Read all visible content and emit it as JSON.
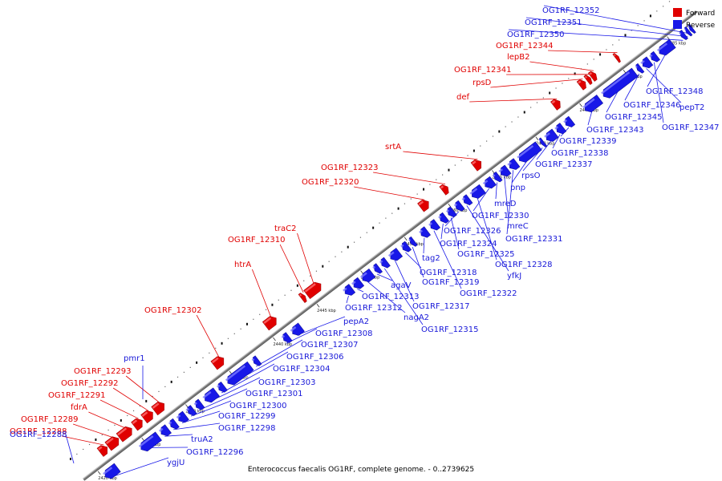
{
  "caption": "Enterococcus faecalis OG1RF, complete genome. - 0..2739625",
  "legend": [
    {
      "label": "Forward",
      "color": "#e00000"
    },
    {
      "label": "Reverse",
      "color": "#1818e8"
    }
  ],
  "colors": {
    "forward": "#e00000",
    "reverse": "#1818e8",
    "forward_label": "#e00000",
    "reverse_label": "#1818d8",
    "backbone": "#777777"
  },
  "axis": {
    "start_kbp": 2420,
    "end_kbp": 2485,
    "tick_step_kbp": 5,
    "tick_suffix": " kbp"
  },
  "forward_genes": [
    {
      "name": "OG1RF_12288",
      "start_kbp": 2421.2,
      "len_kbp": 0.8
    },
    {
      "name": "OG1RF_12289",
      "start_kbp": 2422.1,
      "len_kbp": 1.2
    },
    {
      "name": "fdrA",
      "start_kbp": 2423.4,
      "len_kbp": 1.4
    },
    {
      "name": "OG1RF_12291",
      "start_kbp": 2425.1,
      "len_kbp": 0.9
    },
    {
      "name": "OG1RF_12292",
      "start_kbp": 2426.2,
      "len_kbp": 1.0
    },
    {
      "name": "OG1RF_12293",
      "start_kbp": 2427.4,
      "len_kbp": 1.1
    },
    {
      "name": "OG1RF_12302",
      "start_kbp": 2434.2,
      "len_kbp": 1.1
    },
    {
      "name": "htrA",
      "start_kbp": 2440.1,
      "len_kbp": 1.2
    },
    {
      "name": "OG1RF_12310",
      "start_kbp": 2444.2,
      "len_kbp": 0.4
    },
    {
      "name": "traC2",
      "start_kbp": 2444.8,
      "len_kbp": 1.6
    },
    {
      "name": "OG1RF_12320",
      "start_kbp": 2457.8,
      "len_kbp": 0.9
    },
    {
      "name": "OG1RF_12323",
      "start_kbp": 2460.3,
      "len_kbp": 0.6
    },
    {
      "name": "srtA",
      "start_kbp": 2463.9,
      "len_kbp": 0.8
    },
    {
      "name": "def",
      "start_kbp": 2473.0,
      "len_kbp": 0.7
    },
    {
      "name": "rpsD",
      "start_kbp": 2476.0,
      "len_kbp": 0.6
    },
    {
      "name": "OG1RF_12341",
      "start_kbp": 2476.8,
      "len_kbp": 0.4
    },
    {
      "name": "lepB2",
      "start_kbp": 2477.3,
      "len_kbp": 0.5
    },
    {
      "name": "OG1RF_12344",
      "start_kbp": 2480.1,
      "len_kbp": 0.3
    }
  ],
  "reverse_genes": [
    {
      "name": "ygjU",
      "start_kbp": 2420.2,
      "len_kbp": 1.4
    },
    {
      "name": "OG1RF_12296",
      "start_kbp": 2424.3,
      "len_kbp": 2.0
    },
    {
      "name": "truA2",
      "start_kbp": 2426.6,
      "len_kbp": 0.8
    },
    {
      "name": "OG1RF_12298",
      "start_kbp": 2427.7,
      "len_kbp": 0.6
    },
    {
      "name": "OG1RF_12299",
      "start_kbp": 2428.6,
      "len_kbp": 0.8
    },
    {
      "name": "OG1RF_12300",
      "start_kbp": 2429.7,
      "len_kbp": 0.6
    },
    {
      "name": "OG1RF_12301",
      "start_kbp": 2430.6,
      "len_kbp": 0.6
    },
    {
      "name": "OG1RF_12303",
      "start_kbp": 2431.6,
      "len_kbp": 1.3
    },
    {
      "name": "OG1RF_12304",
      "start_kbp": 2433.2,
      "len_kbp": 0.6
    },
    {
      "name": "OG1RF_12306",
      "start_kbp": 2434.2,
      "len_kbp": 2.6
    },
    {
      "name": "OG1RF_12307",
      "start_kbp": 2437.2,
      "len_kbp": 0.5
    },
    {
      "name": "OG1RF_12308",
      "start_kbp": 2440.6,
      "len_kbp": 0.6
    },
    {
      "name": "pepA2",
      "start_kbp": 2441.6,
      "len_kbp": 1.0
    },
    {
      "name": "OG1RF_12312",
      "start_kbp": 2447.6,
      "len_kbp": 0.8
    },
    {
      "name": "OG1RF_12313",
      "start_kbp": 2448.6,
      "len_kbp": 0.8
    },
    {
      "name": "nagA2",
      "start_kbp": 2449.6,
      "len_kbp": 1.1
    },
    {
      "name": "agaV",
      "start_kbp": 2451.0,
      "len_kbp": 0.5
    },
    {
      "name": "OG1RF_12315",
      "start_kbp": 2451.8,
      "len_kbp": 0.6
    },
    {
      "name": "OG1RF_12317",
      "start_kbp": 2452.8,
      "len_kbp": 1.0
    },
    {
      "name": "OG1RF_12318",
      "start_kbp": 2454.2,
      "len_kbp": 0.6
    },
    {
      "name": "OG1RF_12319",
      "start_kbp": 2455.1,
      "len_kbp": 0.4
    },
    {
      "name": "tag2",
      "start_kbp": 2456.3,
      "len_kbp": 0.7
    },
    {
      "name": "OG1RF_12322",
      "start_kbp": 2457.4,
      "len_kbp": 0.7
    },
    {
      "name": "OG1RF_12324",
      "start_kbp": 2458.5,
      "len_kbp": 0.6
    },
    {
      "name": "OG1RF_12325",
      "start_kbp": 2459.4,
      "len_kbp": 0.6
    },
    {
      "name": "OG1RF_12326",
      "start_kbp": 2460.3,
      "len_kbp": 0.6
    },
    {
      "name": "yfkJ",
      "start_kbp": 2461.2,
      "len_kbp": 0.6
    },
    {
      "name": "OG1RF_12328",
      "start_kbp": 2462.1,
      "len_kbp": 1.2
    },
    {
      "name": "OG1RF_12330",
      "start_kbp": 2463.6,
      "len_kbp": 0.9
    },
    {
      "name": "mreD",
      "start_kbp": 2464.7,
      "len_kbp": 0.5
    },
    {
      "name": "mreC",
      "start_kbp": 2465.4,
      "len_kbp": 0.8
    },
    {
      "name": "OG1RF_12331",
      "start_kbp": 2466.4,
      "len_kbp": 0.8
    },
    {
      "name": "pnp",
      "start_kbp": 2467.5,
      "len_kbp": 2.2
    },
    {
      "name": "rpsO",
      "start_kbp": 2470.0,
      "len_kbp": 0.3
    },
    {
      "name": "OG1RF_12337",
      "start_kbp": 2470.6,
      "len_kbp": 1.0
    },
    {
      "name": "OG1RF_12338",
      "start_kbp": 2471.8,
      "len_kbp": 0.7
    },
    {
      "name": "OG1RF_12339",
      "start_kbp": 2472.8,
      "len_kbp": 0.7
    },
    {
      "name": "OG1RF_12343",
      "start_kbp": 2475.0,
      "len_kbp": 1.7
    },
    {
      "name": "OG1RF_12345",
      "start_kbp": 2477.1,
      "len_kbp": 3.6
    },
    {
      "name": "OG1RF_12346",
      "start_kbp": 2481.0,
      "len_kbp": 0.4
    },
    {
      "name": "pepT2",
      "start_kbp": 2481.6,
      "len_kbp": 0.8
    },
    {
      "name": "OG1RF_12347",
      "start_kbp": 2482.6,
      "len_kbp": 0.6
    },
    {
      "name": "OG1RF_12348",
      "start_kbp": 2483.5,
      "len_kbp": 1.5
    },
    {
      "name": "OG1RF_12350",
      "start_kbp": 2486.0,
      "len_kbp": 0.4
    },
    {
      "name": "OG1RF_12351",
      "start_kbp": 2486.6,
      "len_kbp": 0.3
    },
    {
      "name": "OG1RF_12352",
      "start_kbp": 2487.0,
      "len_kbp": 0.3
    }
  ],
  "forward_labels": [
    {
      "name": "OG1RF_12288"
    },
    {
      "name": "OG1RF_12289"
    },
    {
      "name": "fdrA"
    },
    {
      "name": "OG1RF_12291"
    },
    {
      "name": "OG1RF_12292"
    },
    {
      "name": "OG1RF_12293"
    },
    {
      "name": "OG1RF_12302"
    },
    {
      "name": "htrA"
    },
    {
      "name": "OG1RF_12310"
    },
    {
      "name": "traC2"
    },
    {
      "name": "OG1RF_12320"
    },
    {
      "name": "OG1RF_12323"
    },
    {
      "name": "srtA"
    },
    {
      "name": "def"
    },
    {
      "name": "rpsD"
    },
    {
      "name": "OG1RF_12341"
    },
    {
      "name": "lepB2"
    },
    {
      "name": "OG1RF_12344"
    }
  ],
  "reverse_labels": [
    {
      "name": "OG1RF_12288",
      "gene": "ygjU"
    },
    {
      "name": "pmr1",
      "gene": "OG1RF_12296"
    },
    {
      "name": "ygjU",
      "gene": "ygjU"
    },
    {
      "name": "OG1RF_12296",
      "gene": "OG1RF_12296"
    },
    {
      "name": "truA2",
      "gene": "truA2"
    },
    {
      "name": "OG1RF_12298",
      "gene": "OG1RF_12298"
    },
    {
      "name": "OG1RF_12299",
      "gene": "OG1RF_12299"
    },
    {
      "name": "OG1RF_12300",
      "gene": "OG1RF_12300"
    },
    {
      "name": "OG1RF_12301",
      "gene": "OG1RF_12301"
    },
    {
      "name": "OG1RF_12303",
      "gene": "OG1RF_12303"
    },
    {
      "name": "OG1RF_12304",
      "gene": "OG1RF_12304"
    },
    {
      "name": "OG1RF_12306",
      "gene": "OG1RF_12306"
    },
    {
      "name": "OG1RF_12307",
      "gene": "OG1RF_12307"
    },
    {
      "name": "OG1RF_12308",
      "gene": "OG1RF_12308"
    },
    {
      "name": "pepA2",
      "gene": "pepA2"
    },
    {
      "name": "OG1RF_12312",
      "gene": "OG1RF_12312"
    },
    {
      "name": "OG1RF_12313",
      "gene": "OG1RF_12313"
    },
    {
      "name": "nagA2",
      "gene": "nagA2"
    },
    {
      "name": "agaV",
      "gene": "agaV"
    },
    {
      "name": "OG1RF_12315",
      "gene": "OG1RF_12315"
    },
    {
      "name": "OG1RF_12317",
      "gene": "OG1RF_12317"
    },
    {
      "name": "OG1RF_12318",
      "gene": "OG1RF_12318"
    },
    {
      "name": "OG1RF_12319",
      "gene": "OG1RF_12319"
    },
    {
      "name": "tag2",
      "gene": "tag2"
    },
    {
      "name": "OG1RF_12322",
      "gene": "OG1RF_12322"
    },
    {
      "name": "OG1RF_12324",
      "gene": "OG1RF_12324"
    },
    {
      "name": "OG1RF_12325",
      "gene": "OG1RF_12325"
    },
    {
      "name": "OG1RF_12326",
      "gene": "OG1RF_12326"
    },
    {
      "name": "yfkJ",
      "gene": "yfkJ"
    },
    {
      "name": "OG1RF_12328",
      "gene": "OG1RF_12328"
    },
    {
      "name": "OG1RF_12330",
      "gene": "OG1RF_12330"
    },
    {
      "name": "mreD",
      "gene": "mreD"
    },
    {
      "name": "mreC",
      "gene": "mreC"
    },
    {
      "name": "OG1RF_12331",
      "gene": "OG1RF_12331"
    },
    {
      "name": "pnp",
      "gene": "pnp"
    },
    {
      "name": "rpsO",
      "gene": "rpsO"
    },
    {
      "name": "OG1RF_12337",
      "gene": "OG1RF_12337"
    },
    {
      "name": "OG1RF_12338",
      "gene": "OG1RF_12338"
    },
    {
      "name": "OG1RF_12339",
      "gene": "OG1RF_12339"
    },
    {
      "name": "OG1RF_12343",
      "gene": "OG1RF_12343"
    },
    {
      "name": "OG1RF_12345",
      "gene": "OG1RF_12345"
    },
    {
      "name": "OG1RF_12346",
      "gene": "OG1RF_12346"
    },
    {
      "name": "pepT2",
      "gene": "pepT2"
    },
    {
      "name": "OG1RF_12347",
      "gene": "OG1RF_12347"
    },
    {
      "name": "OG1RF_12348",
      "gene": "OG1RF_12348"
    },
    {
      "name": "OG1RF_12350",
      "gene": "OG1RF_12350"
    },
    {
      "name": "OG1RF_12351",
      "gene": "OG1RF_12351"
    },
    {
      "name": "OG1RF_12352",
      "gene": "OG1RF_12352"
    }
  ]
}
